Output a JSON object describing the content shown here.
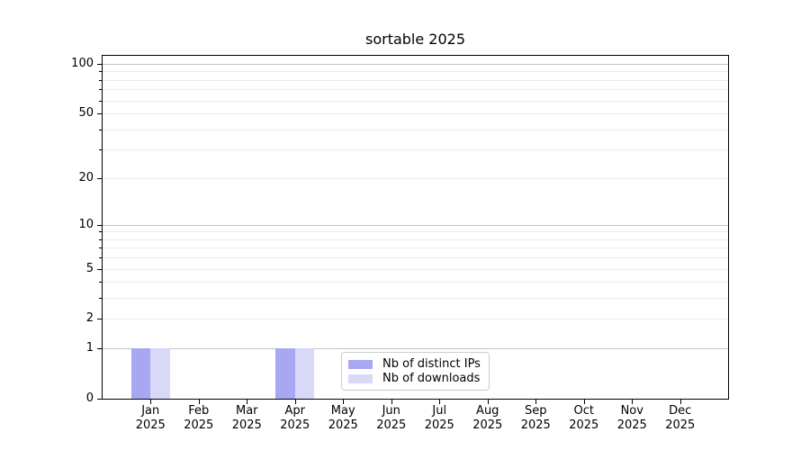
{
  "title": "sortable 2025",
  "chart_data": {
    "type": "bar",
    "title": "sortable 2025",
    "months": [
      "Jan",
      "Feb",
      "Mar",
      "Apr",
      "May",
      "Jun",
      "Jul",
      "Aug",
      "Sep",
      "Oct",
      "Nov",
      "Dec"
    ],
    "year_label": "2025",
    "categories": [
      "Jan 2025",
      "Feb 2025",
      "Mar 2025",
      "Apr 2025",
      "May 2025",
      "Jun 2025",
      "Jul 2025",
      "Aug 2025",
      "Sep 2025",
      "Oct 2025",
      "Nov 2025",
      "Dec 2025"
    ],
    "series": [
      {
        "name": "Nb of distinct IPs",
        "color": "#a8a8f2",
        "values": [
          1,
          0,
          0,
          1,
          0,
          0,
          0,
          0,
          0,
          0,
          0,
          0
        ]
      },
      {
        "name": "Nb of downloads",
        "color": "#d8d8f8",
        "values": [
          1,
          0,
          0,
          1,
          0,
          0,
          0,
          0,
          0,
          0,
          0,
          0
        ]
      }
    ],
    "y_axis": {
      "scale": "log1p",
      "tick_labels": [
        "0",
        "1",
        "2",
        "5",
        "10",
        "20",
        "50",
        "100"
      ],
      "tick_values": [
        0,
        1,
        2,
        5,
        10,
        20,
        50,
        100
      ],
      "major_grid_values": [
        1,
        10,
        100
      ],
      "minor_grid_values": [
        2,
        3,
        4,
        5,
        6,
        7,
        8,
        9,
        20,
        30,
        40,
        50,
        60,
        70,
        80,
        90
      ],
      "ymax": 112
    },
    "legend": {
      "position": "inside-bottom-center"
    },
    "colors": {
      "major_grid": "#c3c3c3",
      "minor_grid": "#ececec",
      "axis": "#000000",
      "background": "#ffffff"
    }
  }
}
